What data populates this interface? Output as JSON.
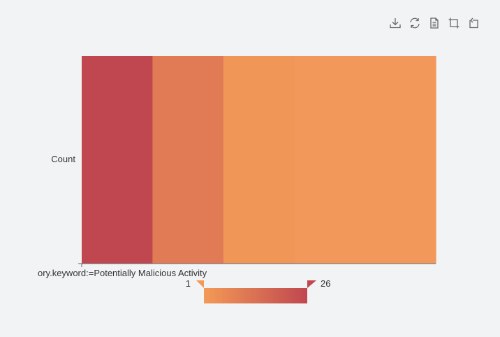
{
  "toolbox": {
    "icons": [
      "download-icon",
      "refresh-icon",
      "data-view-icon",
      "zoom-icon",
      "zoom-reset-icon"
    ]
  },
  "chart_data": {
    "type": "heatmap",
    "y_categories": [
      "Count"
    ],
    "x_tick_label": "ory.keyword:=Potentially Malicious Activity",
    "cells": [
      {
        "value": 26,
        "color": "#c0474f"
      },
      {
        "value": 17,
        "color": "#e07b55"
      },
      {
        "value": 7,
        "color": "#f09656"
      },
      {
        "value": 5,
        "color": "#f1985a"
      },
      {
        "value": 4,
        "color": "#f1985a"
      }
    ],
    "visual_map": {
      "min": 1,
      "max": 26,
      "min_label": "1",
      "max_label": "26",
      "color_low": "#f39a57",
      "color_high": "#c0474f"
    },
    "colors": {
      "axis": "#666666",
      "text": "#333333",
      "background": "#f2f3f5"
    }
  }
}
